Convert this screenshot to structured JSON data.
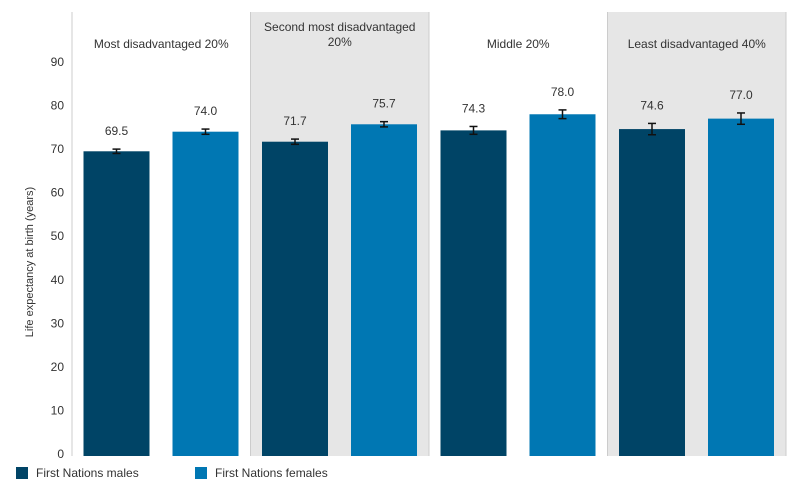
{
  "chart_data": {
    "type": "bar",
    "ylabel": "Life expectancy at birth (years)",
    "ylim": [
      0,
      90
    ],
    "yticks": [
      0,
      10,
      20,
      30,
      40,
      50,
      60,
      70,
      80,
      90
    ],
    "grid": false,
    "legend_position": "bottom-left",
    "panels": [
      {
        "title": "Most disadvantaged 20%",
        "shaded": false
      },
      {
        "title": "Second most disadvantaged 20%",
        "title_lines": [
          "Second most disadvantaged",
          "20%"
        ],
        "shaded": true
      },
      {
        "title": "Middle 20%",
        "shaded": false
      },
      {
        "title": "Least disadvantaged 40%",
        "shaded": true
      }
    ],
    "series": [
      {
        "name": "First Nations males",
        "color": "#004466",
        "values": [
          69.5,
          71.7,
          74.3,
          74.6
        ],
        "error_low": [
          69.0,
          71.1,
          73.4,
          73.3
        ],
        "error_high": [
          70.0,
          72.3,
          75.2,
          75.9
        ]
      },
      {
        "name": "First Nations females",
        "color": "#0077b3",
        "values": [
          74.0,
          75.7,
          78.0,
          77.0
        ],
        "error_low": [
          73.4,
          75.1,
          77.0,
          75.7
        ],
        "error_high": [
          74.6,
          76.3,
          79.0,
          78.3
        ]
      }
    ],
    "label_format": "0.0"
  },
  "colors": {
    "panel_shade": "#e6e6e6",
    "axis_text": "#333333",
    "frame": "#cccccc"
  }
}
